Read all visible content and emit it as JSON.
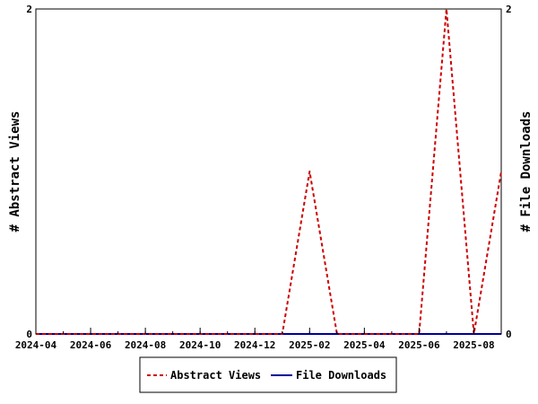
{
  "chart_data": {
    "type": "line",
    "x_ticks": [
      "2024-04",
      "2024-06",
      "2024-08",
      "2024-10",
      "2024-12",
      "2025-02",
      "2025-04",
      "2025-06",
      "2025-08"
    ],
    "x_range": [
      "2024-04",
      "2025-09"
    ],
    "y_left": {
      "label": "# Abstract Views",
      "range": [
        0,
        2
      ],
      "ticks": [
        "0",
        "2"
      ]
    },
    "y_right": {
      "label": "# File Downloads",
      "range": [
        0,
        2
      ],
      "ticks": [
        "0",
        "2"
      ]
    },
    "grid": false,
    "legend_position": "bottom",
    "series": [
      {
        "name": "Abstract Views",
        "axis": "left",
        "color": "#cc0000",
        "style": "dashed",
        "x": [
          "2024-04",
          "2024-05",
          "2024-06",
          "2024-07",
          "2024-08",
          "2024-09",
          "2024-10",
          "2024-11",
          "2024-12",
          "2025-01",
          "2025-02",
          "2025-03",
          "2025-04",
          "2025-05",
          "2025-06",
          "2025-07",
          "2025-08",
          "2025-09"
        ],
        "values": [
          0,
          0,
          0,
          0,
          0,
          0,
          0,
          0,
          0,
          0,
          1,
          0,
          0,
          0,
          0,
          2,
          0,
          1
        ]
      },
      {
        "name": "File Downloads",
        "axis": "right",
        "color": "#000099",
        "style": "solid",
        "x": [
          "2024-04",
          "2024-05",
          "2024-06",
          "2024-07",
          "2024-08",
          "2024-09",
          "2024-10",
          "2024-11",
          "2024-12",
          "2025-01",
          "2025-02",
          "2025-03",
          "2025-04",
          "2025-05",
          "2025-06",
          "2025-07",
          "2025-08",
          "2025-09"
        ],
        "values": [
          0,
          0,
          0,
          0,
          0,
          0,
          0,
          0,
          0,
          0,
          0,
          0,
          0,
          0,
          0,
          0,
          0,
          0
        ]
      }
    ]
  }
}
